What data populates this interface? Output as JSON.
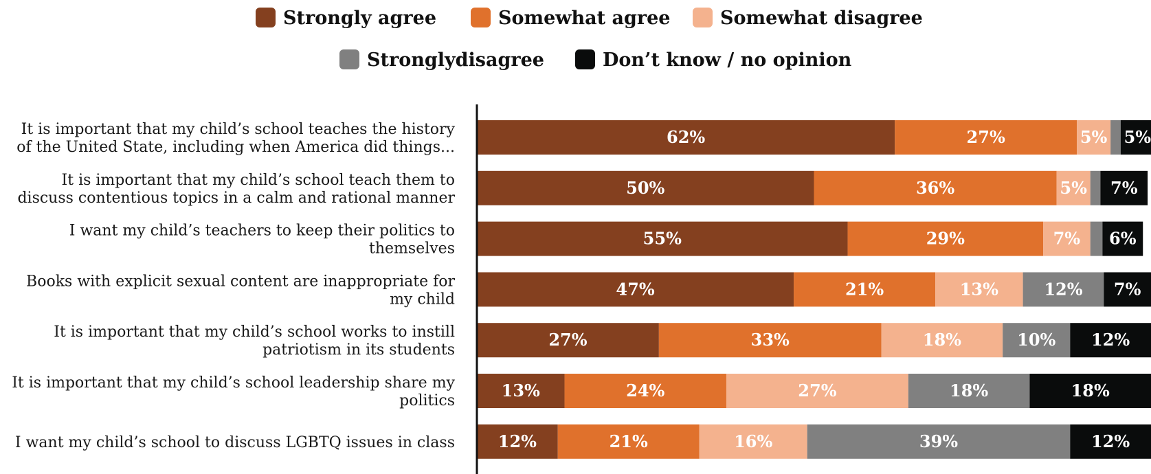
{
  "chart_data": {
    "type": "bar",
    "orientation": "horizontal",
    "stacked": true,
    "xlim": [
      0,
      100
    ],
    "legend_position": "top-center",
    "categories": [
      [
        "It is important that my child’s school teaches the history",
        "of the United State, including when America did things..."
      ],
      [
        "It is important that my child’s school teach them to",
        "discuss contentious topics in a calm and rational manner"
      ],
      [
        "I want my child’s teachers to keep their politics to",
        "themselves"
      ],
      [
        "Books with explicit sexual content are inappropriate for",
        "my child"
      ],
      [
        "It is important that my child’s school works to instill",
        "patriotism in its students"
      ],
      [
        "It is important that my child’s school leadership share my",
        "politics"
      ],
      [
        "I want my child’s school to discuss LGBTQ issues in class"
      ]
    ],
    "series": [
      {
        "name": "Strongly agree",
        "color": "#84401f",
        "values": [
          62,
          50,
          55,
          47,
          27,
          13,
          12
        ],
        "labels": [
          "62%",
          "50%",
          "55%",
          "47%",
          "27%",
          "13%",
          "12%"
        ]
      },
      {
        "name": "Somewhat agree",
        "color": "#e0712c",
        "values": [
          27,
          36,
          29,
          21,
          33,
          24,
          21
        ],
        "labels": [
          "27%",
          "36%",
          "29%",
          "21%",
          "33%",
          "24%",
          "21%"
        ]
      },
      {
        "name": "Somewhat disagree",
        "color": "#f4b28e",
        "values": [
          5,
          5,
          7,
          13,
          18,
          27,
          16
        ],
        "labels": [
          "5%",
          "5%",
          "7%",
          "13%",
          "18%",
          "27%",
          "16%"
        ]
      },
      {
        "name": "Stronglydisagree",
        "color": "#808080",
        "values": [
          1.5,
          1.5,
          1.8,
          12,
          10,
          18,
          39
        ],
        "labels": [
          "",
          "",
          "",
          "12%",
          "10%",
          "18%",
          "39%"
        ]
      },
      {
        "name": "Don’t know / no opinion",
        "color": "#0a0c0c",
        "values": [
          5,
          7,
          6,
          7,
          12,
          18,
          12
        ],
        "labels": [
          "5%",
          "7%",
          "6%",
          "7%",
          "12%",
          "18%",
          "12%"
        ]
      }
    ]
  }
}
